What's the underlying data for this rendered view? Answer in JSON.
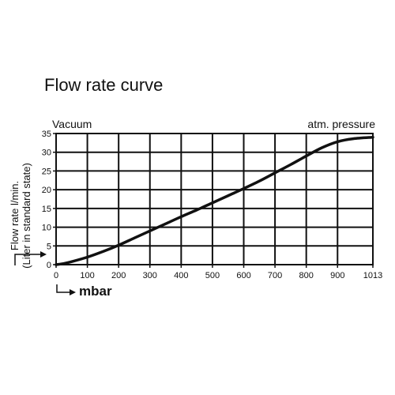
{
  "chart_data": {
    "type": "line",
    "title": "Flow rate curve",
    "corner_labels": {
      "left": "Vacuum",
      "right": "atm. pressure"
    },
    "ylabel_lines": [
      "Flow rate l/min.",
      "(Liter in standard state)"
    ],
    "xlabel": "mbar",
    "x_ticks": [
      0,
      100,
      200,
      300,
      400,
      500,
      600,
      700,
      800,
      900,
      1013
    ],
    "y_ticks": [
      0,
      5,
      10,
      15,
      20,
      25,
      30,
      35
    ],
    "xlim": [
      0,
      1013
    ],
    "ylim": [
      0,
      35
    ],
    "grid": true,
    "series": [
      {
        "x": [
          0,
          25,
          50,
          100,
          150,
          200,
          250,
          300,
          350,
          400,
          450,
          500,
          550,
          600,
          650,
          700,
          750,
          800,
          850,
          900,
          950,
          1013
        ],
        "y": [
          0,
          0.3,
          0.8,
          2.0,
          3.5,
          5.2,
          7.1,
          9.0,
          10.9,
          12.8,
          14.6,
          16.5,
          18.4,
          20.3,
          22.3,
          24.5,
          26.7,
          29.0,
          31.2,
          32.8,
          33.6,
          34.0
        ]
      }
    ]
  }
}
